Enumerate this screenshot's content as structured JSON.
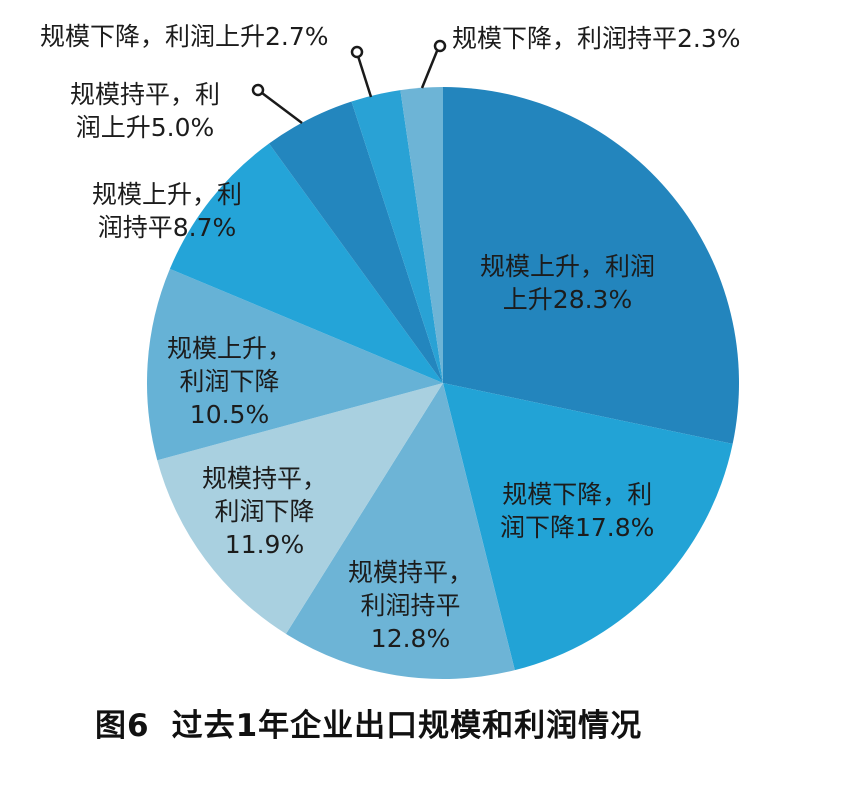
{
  "chart_data": {
    "type": "pie",
    "title": "图6  过去1年企业出口规模和利润情况",
    "start_angle": "12 o'clock, clockwise",
    "slices": [
      {
        "label": "规模上升，利润上升",
        "value": 28.3,
        "color": "#2385bd"
      },
      {
        "label": "规模下降，利润下降",
        "value": 17.8,
        "color": "#22a3d6"
      },
      {
        "label": "规模持平，利润持平",
        "value": 12.8,
        "color": "#6db4d6"
      },
      {
        "label": "规模持平，利润下降",
        "value": 11.9,
        "color": "#a9d0e0"
      },
      {
        "label": "规模上升，利润下降",
        "value": 10.5,
        "color": "#66b2d6"
      },
      {
        "label": "规模上升，利润持平",
        "value": 8.7,
        "color": "#24a4d8"
      },
      {
        "label": "规模持平，利润上升",
        "value": 5.0,
        "color": "#2386be"
      },
      {
        "label": "规模下降，利润上升",
        "value": 2.7,
        "color": "#29a2d5"
      },
      {
        "label": "规模下降，利润持平",
        "value": 2.3,
        "color": "#6db4d6"
      }
    ]
  },
  "labels": {
    "s1": [
      "规模上升，利润",
      "上升28.3%"
    ],
    "s2": [
      "规模下降，利",
      "润下降17.8%"
    ],
    "s3": [
      "规模持平，",
      "利润持平",
      "12.8%"
    ],
    "s4": [
      "规模持平，",
      "利润下降",
      "11.9%"
    ],
    "s5": [
      "规模上升，",
      "利润下降",
      "10.5%"
    ],
    "s6": [
      "规模上升，利",
      "润持平8.7%"
    ],
    "s7": [
      "规模持平，利",
      "润上升5.0%"
    ],
    "s8": [
      "规模下降，利润上升2.7%"
    ],
    "s9": [
      "规模下降，利润持平2.3%"
    ]
  },
  "caption": {
    "fig": "图6",
    "text": "过去1年企业出口规模和利润情况"
  }
}
